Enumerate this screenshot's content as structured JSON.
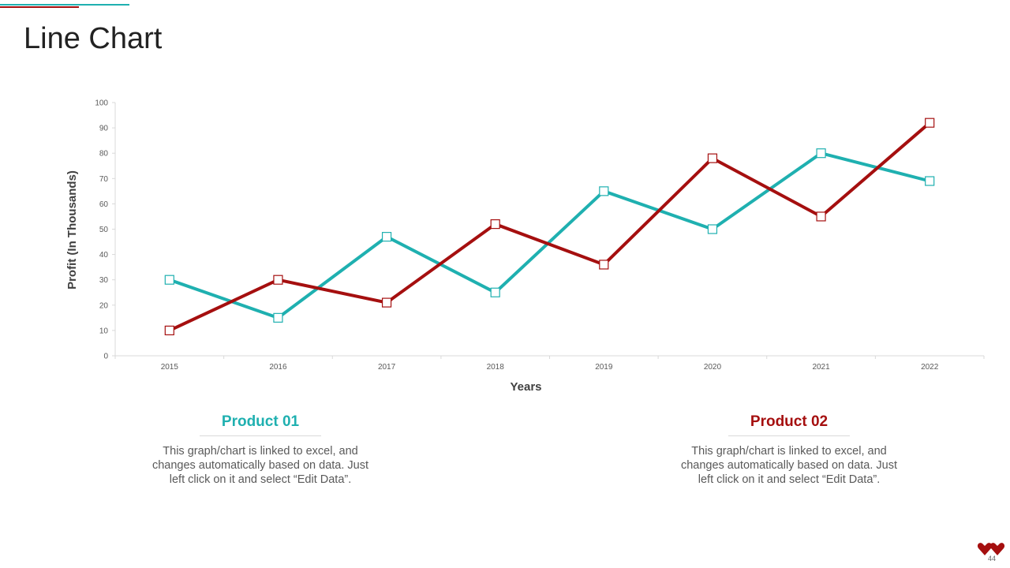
{
  "slide": {
    "title": "Line Chart",
    "page_number": "44"
  },
  "colors": {
    "product1": "#1fb0b0",
    "product2": "#a50f0f",
    "axis": "#d9d9d9",
    "tick_text": "#595959",
    "label_text": "#404040"
  },
  "chart_data": {
    "type": "line",
    "title": "",
    "xlabel": "Years",
    "ylabel": "Profit (In Thousands)",
    "categories": [
      "2015",
      "2016",
      "2017",
      "2018",
      "2019",
      "2020",
      "2021",
      "2022"
    ],
    "ylim": [
      0,
      100
    ],
    "yticks": [
      0,
      10,
      20,
      30,
      40,
      50,
      60,
      70,
      80,
      90,
      100
    ],
    "grid": false,
    "series": [
      {
        "name": "Product 01",
        "color": "#1fb0b0",
        "values": [
          30,
          15,
          47,
          25,
          65,
          50,
          80,
          69
        ]
      },
      {
        "name": "Product 02",
        "color": "#a50f0f",
        "values": [
          10,
          30,
          21,
          52,
          36,
          78,
          55,
          92
        ]
      }
    ]
  },
  "products": [
    {
      "heading": "Product 01",
      "text": "This graph/chart is linked to excel, and changes automatically based on data. Just left click on it and select “Edit Data”."
    },
    {
      "heading": "Product 02",
      "text": "This graph/chart is linked to excel, and changes automatically based on data. Just left click on it and select “Edit Data”."
    }
  ]
}
